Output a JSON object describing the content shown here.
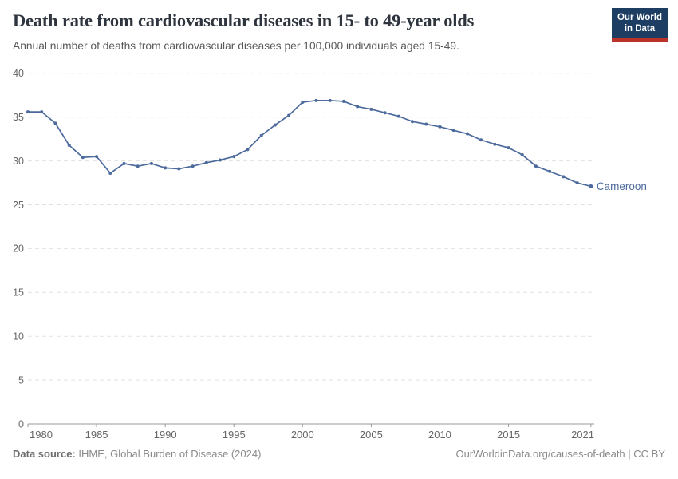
{
  "header": {
    "logo": {
      "line1": "Our World",
      "line2": "in Data",
      "bg_color": "#1d3d63",
      "bar_color": "#b9332a"
    }
  },
  "footer": {
    "source_label": "Data source:",
    "source_value": "IHME, Global Burden of Disease (2024)",
    "credit": "OurWorldinData.org/causes-of-death | CC BY"
  },
  "chart_data": {
    "type": "line",
    "title": "Death rate from cardiovascular diseases in 15- to 49-year olds",
    "subtitle": "Annual number of deaths from cardiovascular diseases per 100,000 individuals aged 15-49.",
    "xlabel": "",
    "ylabel": "",
    "xlim": [
      1980,
      2021
    ],
    "ylim": [
      0,
      40
    ],
    "grid": "dashed-horizontal",
    "legend_position": "end-of-line",
    "x_ticks": [
      1980,
      1985,
      1990,
      1995,
      2000,
      2005,
      2010,
      2015,
      2021
    ],
    "y_ticks": [
      0,
      5,
      10,
      15,
      20,
      25,
      30,
      35,
      40
    ],
    "x": [
      1980,
      1981,
      1982,
      1983,
      1984,
      1985,
      1986,
      1987,
      1988,
      1989,
      1990,
      1991,
      1992,
      1993,
      1994,
      1995,
      1996,
      1997,
      1998,
      1999,
      2000,
      2001,
      2002,
      2003,
      2004,
      2005,
      2006,
      2007,
      2008,
      2009,
      2010,
      2011,
      2012,
      2013,
      2014,
      2015,
      2016,
      2017,
      2018,
      2019,
      2020,
      2021
    ],
    "series": [
      {
        "name": "Cameroon",
        "color": "#4c6a9c",
        "values": [
          35.6,
          35.6,
          34.3,
          31.8,
          30.4,
          30.5,
          28.6,
          29.7,
          29.4,
          29.7,
          29.2,
          29.1,
          29.4,
          29.8,
          30.1,
          30.5,
          31.3,
          32.9,
          34.1,
          35.2,
          36.7,
          36.9,
          36.9,
          36.8,
          36.2,
          35.9,
          35.5,
          35.1,
          34.5,
          34.2,
          33.9,
          33.5,
          33.1,
          32.4,
          31.9,
          31.5,
          30.7,
          29.4,
          28.8,
          28.2,
          27.5,
          27.1
        ]
      }
    ],
    "style": {
      "grid_color": "#e2e2e2",
      "axis_color": "#999999",
      "tick_label_color": "#666666"
    }
  }
}
